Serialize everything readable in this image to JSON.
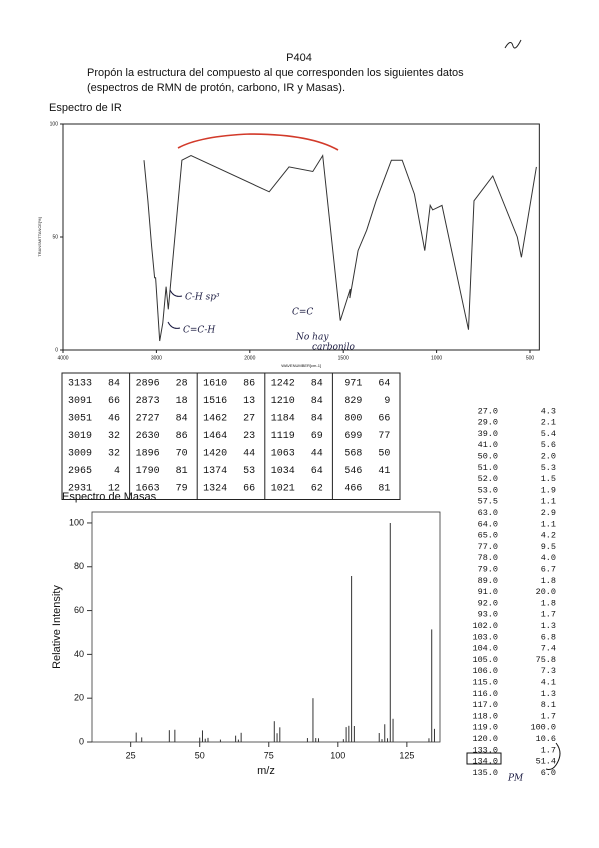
{
  "header": {
    "code": "P404",
    "line_1": "Propón la estructura del compuesto al que corresponden los siguientes datos",
    "line_2": "(espectros de RMN de protón, carbono, IR y Masas)."
  },
  "ir_spectrum": {
    "heading": "Espectro de IR",
    "chart_data": {
      "type": "line",
      "x_label": "WAVENUMBER[cm-1]",
      "y_label": "TRANSMITTANCE[%]",
      "color": "#333333",
      "x": [
        3133,
        3091,
        3051,
        3019,
        3009,
        2965,
        2931,
        2896,
        2873,
        2727,
        2630,
        1896,
        1790,
        1663,
        1610,
        1516,
        1462,
        1464,
        1420,
        1374,
        1324,
        1242,
        1210,
        1184,
        1119,
        1063,
        1034,
        1021,
        971,
        829,
        800,
        699,
        568,
        546,
        466
      ],
      "values": [
        84,
        66,
        46,
        32,
        32,
        4,
        12,
        28,
        18,
        84,
        86,
        70,
        81,
        79,
        86,
        13,
        27,
        23,
        44,
        53,
        66,
        84,
        84,
        84,
        69,
        44,
        64,
        62,
        64,
        9,
        66,
        77,
        50,
        41,
        81
      ],
      "xlim": [
        4000,
        450
      ],
      "ylim": [
        0,
        100
      ],
      "xticks": [
        4000,
        3000,
        2000,
        1500,
        1000,
        500
      ],
      "yticks": [
        0,
        50,
        100
      ]
    }
  },
  "mass_spectrum": {
    "heading": "Espectro de Masas",
    "chart_data": {
      "type": "bar",
      "x_label": "m/z",
      "y_label": "Relative Intensity",
      "color": "#333333",
      "x": [
        27,
        29,
        39,
        41,
        50,
        51,
        52,
        53,
        57.5,
        63,
        64,
        65,
        77,
        78,
        79,
        89,
        91,
        92,
        93,
        102,
        103,
        104,
        105,
        106,
        115,
        116,
        117,
        118,
        119,
        120,
        133,
        134,
        135
      ],
      "x_labels": [
        "27.0",
        "29.0",
        "39.0",
        "41.0",
        "50.0",
        "51.0",
        "52.0",
        "53.0",
        "57.5",
        "63.0",
        "64.0",
        "65.0",
        "77.0",
        "78.0",
        "79.0",
        "89.0",
        "91.0",
        "92.0",
        "93.0",
        "102.0",
        "103.0",
        "104.0",
        "105.0",
        "106.0",
        "115.0",
        "116.0",
        "117.0",
        "118.0",
        "119.0",
        "120.0",
        "133.0",
        "134.0",
        "135.0"
      ],
      "values": [
        4.3,
        2.1,
        5.4,
        5.6,
        2.0,
        5.3,
        1.5,
        1.9,
        1.1,
        2.9,
        1.1,
        4.2,
        9.5,
        4.0,
        6.7,
        1.8,
        20.0,
        1.8,
        1.7,
        1.3,
        6.8,
        7.4,
        75.8,
        7.3,
        4.1,
        1.3,
        8.1,
        1.7,
        100.0,
        10.6,
        1.7,
        51.4,
        6.0
      ],
      "value_labels": [
        "4.3",
        "2.1",
        "5.4",
        "5.6",
        "2.0",
        "5.3",
        "1.5",
        "1.9",
        "1.1",
        "2.9",
        "1.1",
        "4.2",
        "9.5",
        "4.0",
        "6.7",
        "1.8",
        "20.0",
        "1.8",
        "1.7",
        "1.3",
        "6.8",
        "7.4",
        "75.8",
        "7.3",
        "4.1",
        "1.3",
        "8.1",
        "1.7",
        "100.0",
        "10.6",
        "1.7",
        "51.4",
        "6.0"
      ],
      "xlim": [
        11,
        137
      ],
      "ylim": [
        0,
        105
      ],
      "xticks": [
        25,
        50,
        75,
        100,
        125
      ],
      "yticks": [
        0,
        20,
        40,
        60,
        80,
        100
      ]
    }
  },
  "annotations": [
    "C-H sp³",
    "C=C-H",
    "C=C",
    "No hay",
    "carbonilo",
    "PM"
  ]
}
